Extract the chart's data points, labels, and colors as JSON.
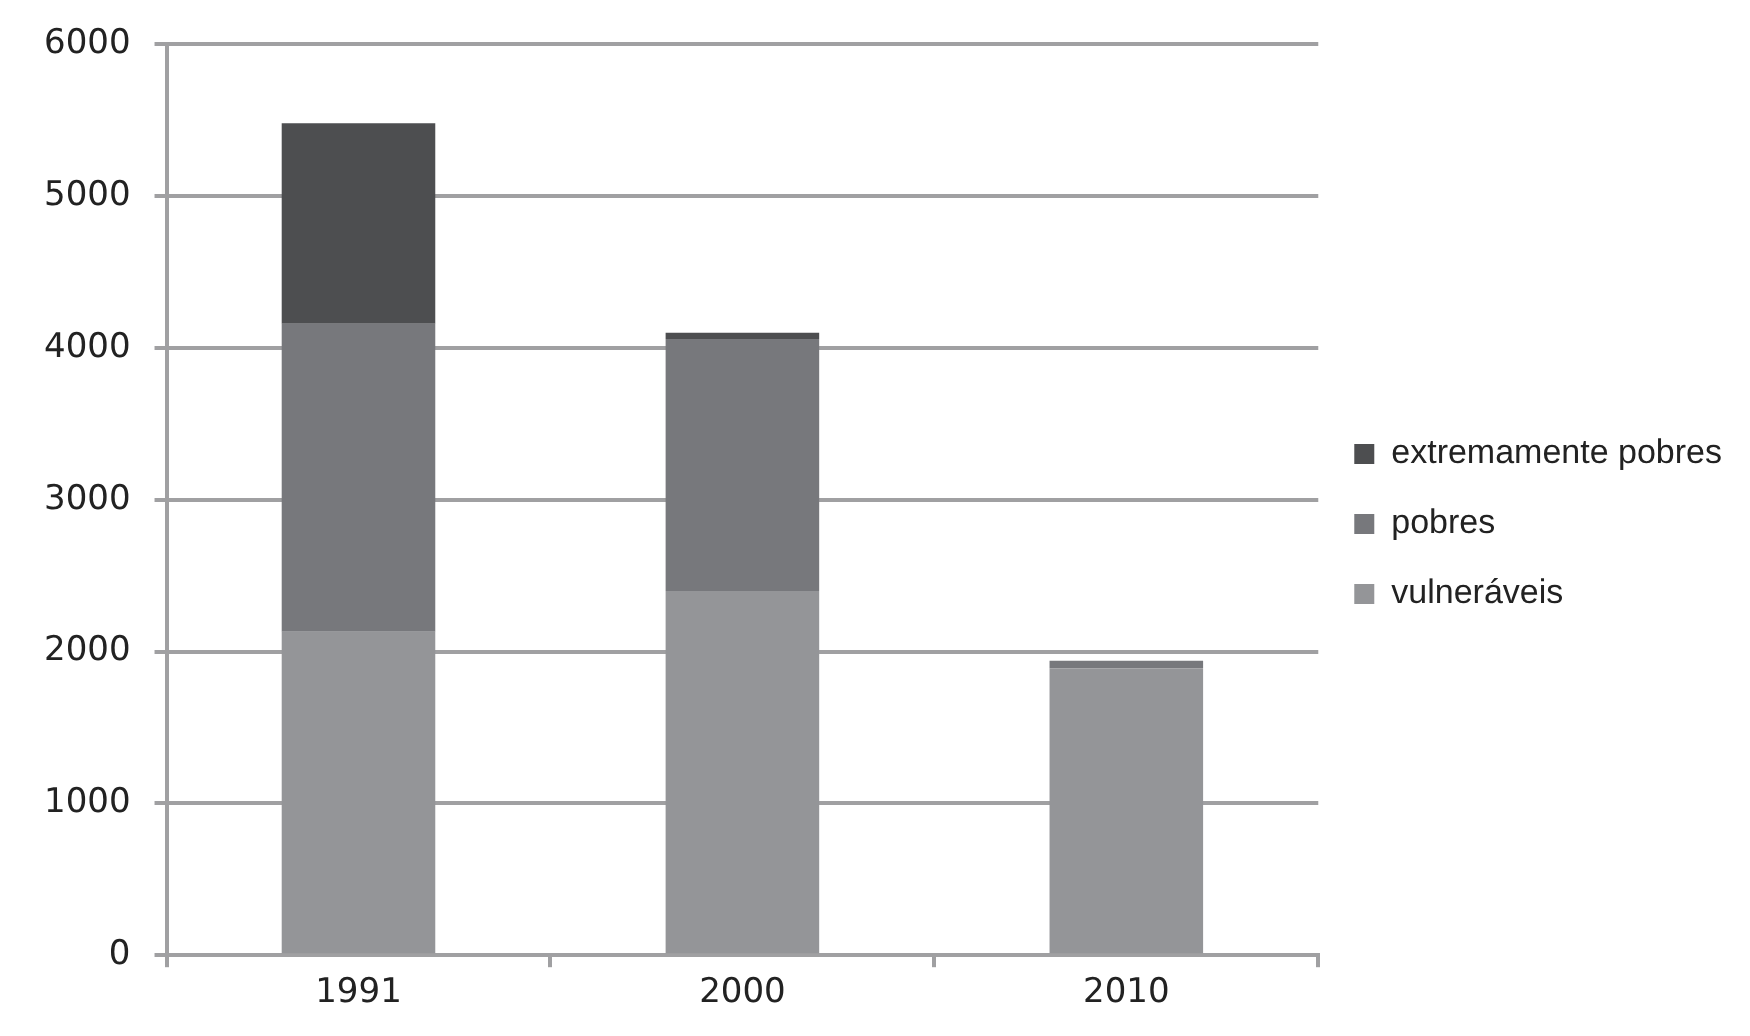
{
  "chart_data": {
    "type": "bar",
    "stacked": true,
    "categories": [
      "1991",
      "2000",
      "2010"
    ],
    "series": [
      {
        "name": "vulneráveis",
        "color": "#949598",
        "values": [
          2130,
          2400,
          1890
        ]
      },
      {
        "name": "pobres",
        "color": "#77787c",
        "values": [
          2030,
          1660,
          50
        ]
      },
      {
        "name": "extremamente pobres",
        "color": "#4d4e50",
        "values": [
          1320,
          40,
          0
        ]
      }
    ],
    "ylim": [
      0,
      6000
    ],
    "yticks": [
      0,
      1000,
      2000,
      3000,
      4000,
      5000,
      6000
    ],
    "grid": "y",
    "legend": "right"
  }
}
